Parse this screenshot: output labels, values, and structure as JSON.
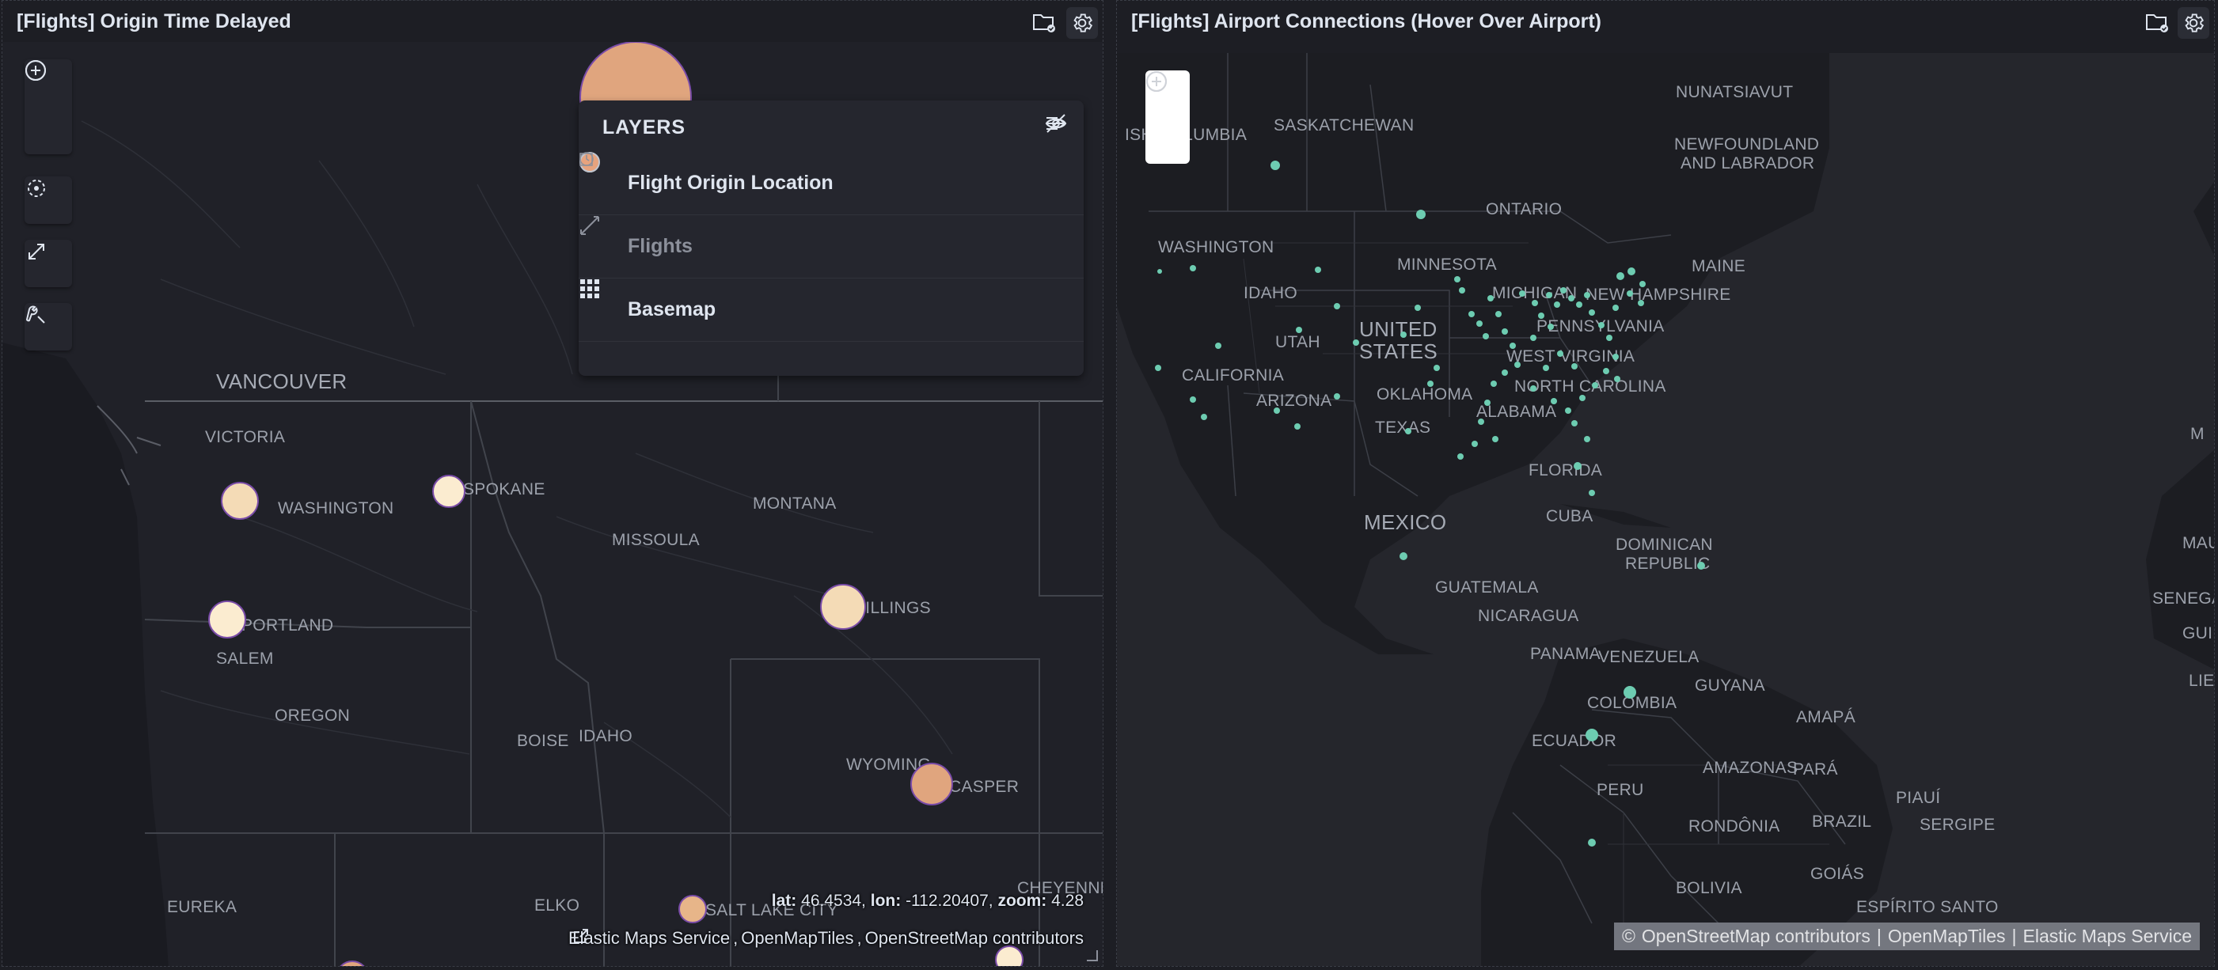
{
  "left_panel": {
    "title": "[Flights] Origin Time Delayed",
    "layers_panel": {
      "title": "LAYERS",
      "layers": [
        {
          "name": "Flight Origin Location",
          "symbol_color": "#e7a37e",
          "icon": "circle-swatch"
        },
        {
          "name": "Flights",
          "icon": "line-layer-icon",
          "dimmed": true
        },
        {
          "name": "Basemap",
          "icon": "grid-icon"
        }
      ]
    },
    "coords": {
      "lat_label": "lat:",
      "lat": "46.4534,",
      "lon_label": "lon:",
      "lon": "-112.20407,",
      "zoom_label": "zoom:",
      "zoom": "4.28"
    },
    "attribution": [
      "Elastic Maps Service",
      "OpenMapTiles",
      "OpenStreetMap contributors"
    ],
    "labels": {
      "vancouver": "VANCOUVER",
      "victoria": "VICTORIA",
      "washington": "WASHINGTON",
      "spokane": "SPOKANE",
      "montana": "MONTANA",
      "missoula": "MISSOULA",
      "portland": "PORTLAND",
      "salem": "SALEM",
      "billings": "BILLINGS",
      "oregon": "OREGON",
      "boise": "BOISE",
      "idaho": "IDAHO",
      "wyoming": "WYOMING",
      "casper": "CASPER",
      "eureka": "EUREKA",
      "elko": "ELKO",
      "salt_lake_city": "SALT LAKE CITY",
      "cheyenne": "CHEYENNE"
    },
    "colors": {
      "point_dark": "#e0a57e",
      "point_light": "#f4dbb6",
      "point_pale": "#fbecd0",
      "outline": "#7a4ca8"
    }
  },
  "right_panel": {
    "title": "[Flights] Airport Connections (Hover Over Airport)",
    "attribution": [
      "OpenStreetMap contributors",
      "OpenMapTiles",
      "Elastic Maps Service"
    ],
    "attribution_copyright": "©",
    "labels": {
      "nunatsiavut": "NUNATSIAVUT",
      "saskatchewan": "SASKATCHEWAN",
      "bc": "ISH COLUMBIA",
      "newfoundland_1": "NEWFOUNDLAND",
      "newfoundland_2": "AND LABRADOR",
      "ontario": "ONTARIO",
      "washington": "WASHINGTON",
      "minnesota": "MINNESOTA",
      "maine": "MAINE",
      "idaho": "IDAHO",
      "michigan": "MICHIGAN",
      "new_hampshire": "NEW HAMPSHIRE",
      "utah": "UTAH",
      "united_1": "UNITED",
      "united_2": "STATES",
      "pennsylvania": "PENNSYLVANIA",
      "west_virginia": "WEST VIRGINIA",
      "california": "CALIFORNIA",
      "oklahoma": "OKLAHOMA",
      "north_carolina": "NORTH CAROLINA",
      "arizona": "ARIZONA",
      "alabama": "ALABAMA",
      "texas": "TEXAS",
      "florida": "FLORIDA",
      "mexico": "MEXICO",
      "cuba": "CUBA",
      "dominican_1": "DOMINICAN",
      "dominican_2": "REPUBLIC",
      "guatemala": "GUATEMALA",
      "nicaragua": "NICARAGUA",
      "panama": "PANAMA",
      "venezuela": "VENEZUELA",
      "guyana": "GUYANA",
      "colombia": "COLOMBIA",
      "amapa": "AMAPÁ",
      "ecuador": "ECUADOR",
      "amazonas": "AMAZONAS",
      "para": "PARÁ",
      "peru": "PERU",
      "piaui": "PIAUÍ",
      "brazil": "BRAZIL",
      "rondonia": "RONDÔNIA",
      "sergipe": "SERGIPE",
      "goias": "GOIÁS",
      "bolivia": "BOLIVIA",
      "espirito_santo": "ESPÍRITO SANTO",
      "m": "M",
      "mau": "MAU",
      "senegal": "SENEGAL",
      "guin": "GUIN",
      "lie": "LIE"
    },
    "colors": {
      "point": "#6dccb1"
    }
  }
}
